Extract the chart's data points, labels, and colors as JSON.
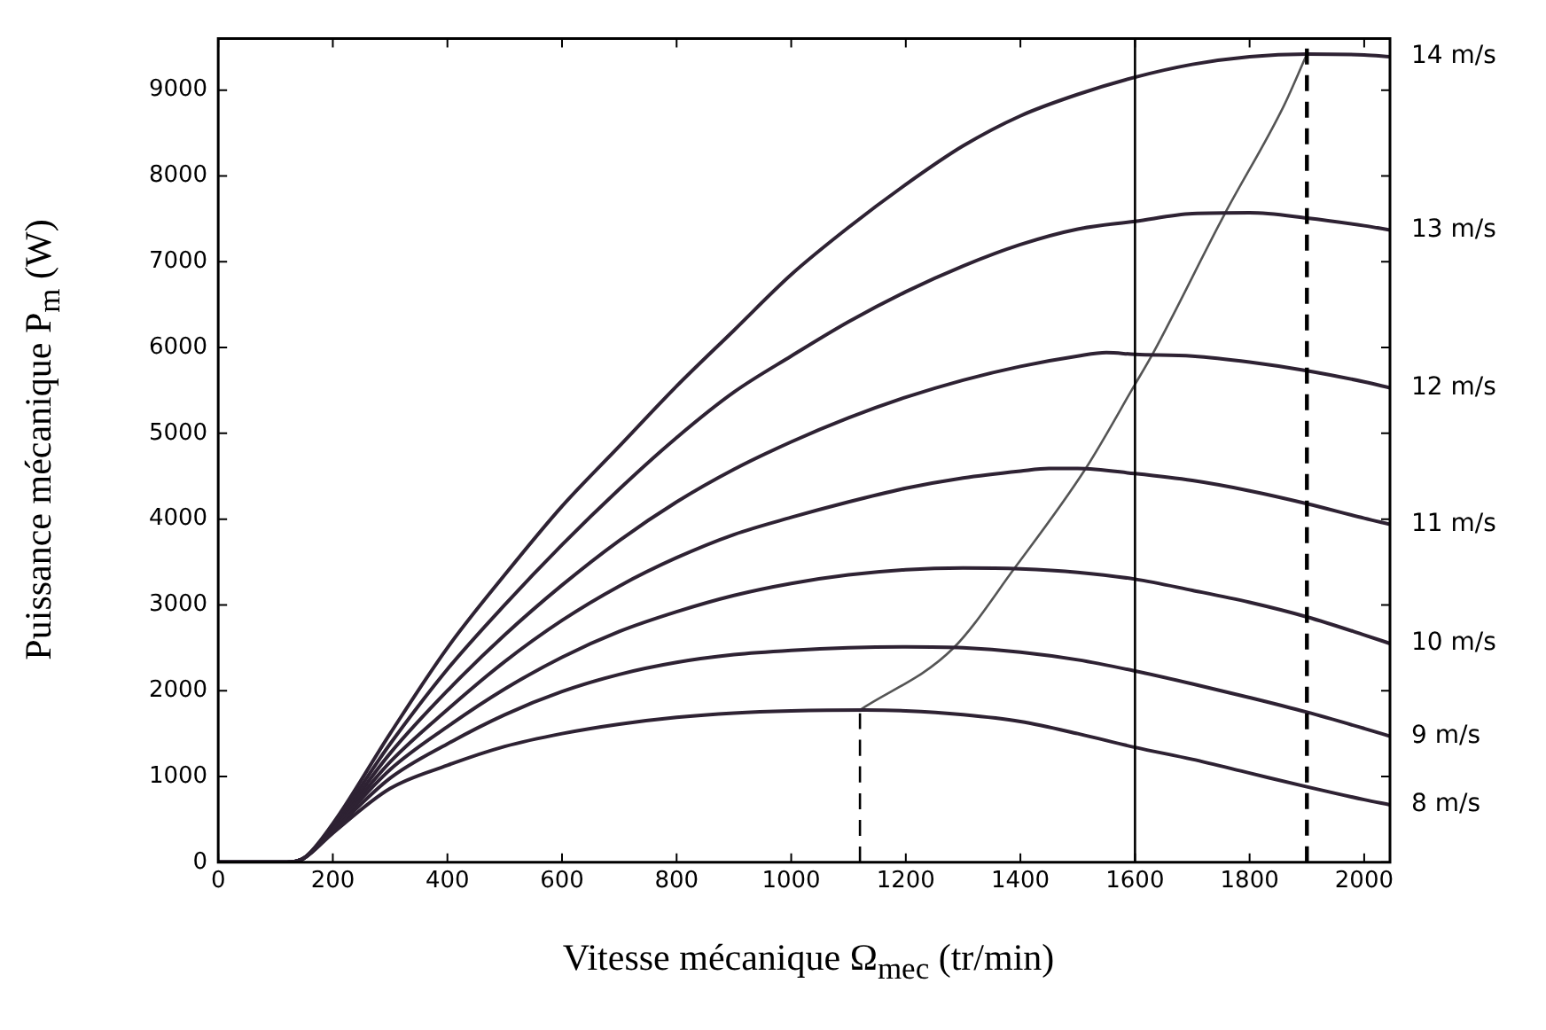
{
  "chart_data": {
    "type": "line",
    "xlabel": "Vitesse mécanique  Ω$_{mec}$ (tr/min)",
    "ylabel": "Puissance mécanique  P$_{m}$ (W)",
    "xlim": [
      0,
      2045
    ],
    "ylim": [
      0,
      9600
    ],
    "xticks": [
      0,
      200,
      400,
      600,
      800,
      1000,
      1200,
      1400,
      1600,
      1800,
      2000
    ],
    "yticks": [
      0,
      1000,
      2000,
      3000,
      4000,
      5000,
      6000,
      7000,
      8000,
      9000
    ],
    "grid": false,
    "series": [
      {
        "name": "8 m/s",
        "color": "#2e2233",
        "x": [
          0,
          120,
          150,
          200,
          300,
          400,
          500,
          600,
          700,
          800,
          900,
          1000,
          1130,
          1200,
          1300,
          1400,
          1500,
          1600,
          1700,
          1800,
          1900,
          2000,
          2045
        ],
        "values": [
          0,
          0,
          50,
          340,
          860,
          1130,
          1350,
          1500,
          1610,
          1690,
          1740,
          1765,
          1775,
          1765,
          1720,
          1640,
          1500,
          1340,
          1200,
          1040,
          880,
          730,
          670
        ]
      },
      {
        "name": "9 m/s",
        "color": "#2e2233",
        "x": [
          0,
          120,
          150,
          200,
          300,
          400,
          500,
          600,
          700,
          800,
          900,
          1000,
          1100,
          1200,
          1300,
          1400,
          1500,
          1600,
          1700,
          1800,
          1900,
          2000,
          2045
        ],
        "values": [
          0,
          0,
          50,
          360,
          980,
          1380,
          1720,
          1990,
          2190,
          2330,
          2420,
          2470,
          2500,
          2510,
          2500,
          2450,
          2360,
          2230,
          2080,
          1920,
          1750,
          1560,
          1470
        ]
      },
      {
        "name": "10 m/s",
        "color": "#2e2233",
        "x": [
          0,
          120,
          150,
          200,
          300,
          400,
          500,
          600,
          700,
          800,
          900,
          1000,
          1100,
          1200,
          1300,
          1400,
          1500,
          1600,
          1700,
          1800,
          1900,
          2000,
          2045
        ],
        "values": [
          0,
          0,
          50,
          380,
          1080,
          1580,
          2020,
          2390,
          2690,
          2920,
          3110,
          3250,
          3350,
          3410,
          3430,
          3420,
          3380,
          3300,
          3170,
          3030,
          2860,
          2650,
          2550
        ]
      },
      {
        "name": "11 m/s",
        "color": "#2e2233",
        "x": [
          0,
          120,
          150,
          200,
          300,
          400,
          500,
          600,
          700,
          800,
          900,
          1000,
          1100,
          1200,
          1300,
          1400,
          1450,
          1500,
          1600,
          1700,
          1800,
          1900,
          2000,
          2045
        ],
        "values": [
          0,
          0,
          50,
          390,
          1170,
          1780,
          2340,
          2820,
          3220,
          3550,
          3820,
          4020,
          4200,
          4360,
          4480,
          4560,
          4590,
          4590,
          4530,
          4450,
          4330,
          4180,
          4010,
          3940
        ]
      },
      {
        "name": "12 m/s",
        "color": "#2e2233",
        "x": [
          0,
          120,
          150,
          200,
          300,
          400,
          500,
          600,
          700,
          800,
          900,
          1000,
          1100,
          1200,
          1300,
          1400,
          1500,
          1550,
          1600,
          1700,
          1800,
          1900,
          2000,
          2045
        ],
        "values": [
          0,
          0,
          50,
          400,
          1270,
          2000,
          2650,
          3230,
          3750,
          4200,
          4580,
          4900,
          5180,
          5420,
          5620,
          5780,
          5900,
          5940,
          5920,
          5900,
          5830,
          5730,
          5600,
          5530
        ]
      },
      {
        "name": "13 m/s",
        "color": "#2e2233",
        "x": [
          0,
          120,
          150,
          200,
          300,
          400,
          500,
          600,
          700,
          800,
          900,
          1000,
          1100,
          1200,
          1300,
          1400,
          1500,
          1600,
          1700,
          1800,
          1900,
          2000,
          2045
        ],
        "values": [
          0,
          0,
          50,
          420,
          1380,
          2250,
          3000,
          3700,
          4350,
          4950,
          5480,
          5900,
          6300,
          6650,
          6950,
          7200,
          7380,
          7470,
          7560,
          7570,
          7510,
          7420,
          7370
        ]
      },
      {
        "name": "14 m/s",
        "color": "#2e2233",
        "x": [
          0,
          120,
          150,
          200,
          300,
          400,
          500,
          600,
          700,
          800,
          900,
          1000,
          1100,
          1200,
          1300,
          1400,
          1500,
          1600,
          1700,
          1800,
          1900,
          2000,
          2045
        ],
        "values": [
          0,
          0,
          50,
          450,
          1500,
          2500,
          3350,
          4150,
          4850,
          5550,
          6200,
          6850,
          7400,
          7900,
          8350,
          8700,
          8950,
          9150,
          9300,
          9390,
          9420,
          9410,
          9390
        ]
      },
      {
        "color": "#555555",
        "x": [
          1120,
          1282,
          1390,
          1514,
          1600,
          1632,
          1756,
          1860,
          1900
        ],
        "values": [
          1775,
          2490,
          3430,
          4590,
          5570,
          5940,
          7550,
          8820,
          9420
        ]
      },
      {
        "color": "#000000",
        "line_style": "dashed",
        "x": [
          1120,
          1120
        ],
        "values": [
          0,
          1775
        ]
      }
    ],
    "ref_lines": [
      {
        "axis": "x",
        "value": 1600,
        "color": "#000000",
        "line_style": "solid"
      },
      {
        "axis": "x",
        "value": 1900,
        "color": "#000000",
        "line_style": "dashed"
      }
    ]
  }
}
